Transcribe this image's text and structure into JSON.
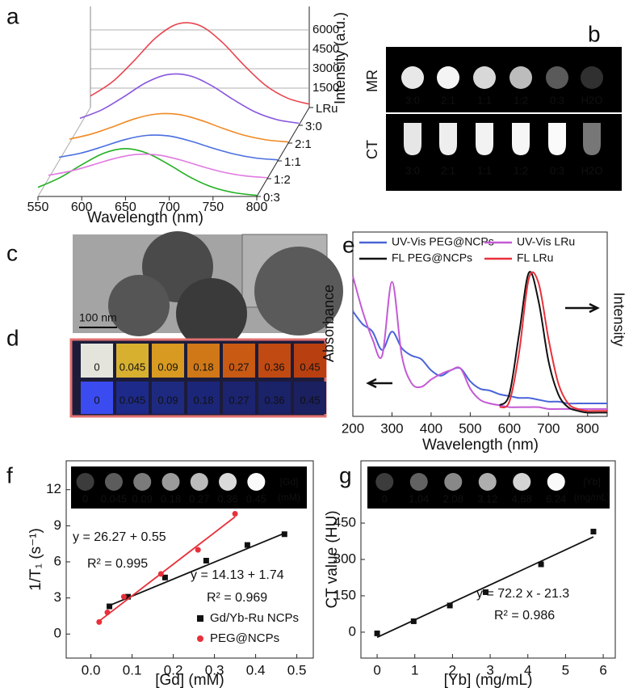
{
  "panel_labels": [
    "a",
    "b",
    "c",
    "d",
    "e",
    "f",
    "g"
  ],
  "panel_b": {
    "rows": [
      "MR",
      "CT"
    ],
    "samples": [
      "3:0",
      "2:1",
      "1:1",
      "1:2",
      "0:3",
      "H2O"
    ]
  },
  "panel_c": {
    "scale_bar": "100 nm"
  },
  "panel_d": {
    "concentrations": [
      "0",
      "0.045",
      "0.09",
      "0.18",
      "0.27",
      "0.36",
      "0.45"
    ]
  },
  "chart_data": [
    {
      "type": "waterfall",
      "x_label": "Wavelength (nm)",
      "y_label": "Intensity (a.u.)",
      "x": [
        550,
        575,
        600,
        625,
        650,
        675,
        700,
        725,
        750,
        775,
        800
      ],
      "xlim": [
        550,
        800
      ],
      "xticks": [
        550,
        600,
        650,
        700,
        750,
        800
      ],
      "ylim": [
        0,
        7500
      ],
      "yticks": [
        1500,
        3000,
        4500,
        6000
      ],
      "series": [
        {
          "name": "0:3",
          "color": "#22b022",
          "values": [
            700,
            1450,
            2450,
            3340,
            3700,
            3340,
            2450,
            1450,
            700,
            280,
            90
          ]
        },
        {
          "name": "1:2",
          "color": "#e07ae0",
          "values": [
            260,
            580,
            1050,
            1550,
            1870,
            1830,
            1460,
            950,
            500,
            210,
            75
          ]
        },
        {
          "name": "1:1",
          "color": "#4a6ee0",
          "values": [
            280,
            600,
            1100,
            1640,
            1970,
            1930,
            1540,
            1000,
            530,
            220,
            80
          ]
        },
        {
          "name": "2:1",
          "color": "#f08a24",
          "values": [
            310,
            700,
            1270,
            1890,
            2250,
            2210,
            1770,
            1150,
            600,
            250,
            90
          ]
        },
        {
          "name": "3:0",
          "color": "#8855dd",
          "values": [
            540,
            1200,
            2200,
            3280,
            3920,
            3840,
            3080,
            2000,
            1040,
            440,
            160
          ]
        },
        {
          "name": "LRu",
          "color": "#e8454f",
          "values": [
            890,
            1980,
            3630,
            5410,
            6470,
            6340,
            5080,
            3300,
            1720,
            730,
            260
          ]
        }
      ]
    },
    {
      "type": "line",
      "x_label": "Wavelength (nm)",
      "y_label": "Absorbance",
      "y2_label": "Intensity",
      "x": [
        200,
        225,
        250,
        275,
        300,
        325,
        350,
        375,
        400,
        425,
        450,
        475,
        500,
        525,
        550,
        575,
        600,
        625,
        650,
        675,
        700,
        725,
        750,
        775,
        800,
        825,
        850
      ],
      "xlim": [
        200,
        850
      ],
      "xticks": [
        200,
        300,
        400,
        500,
        600,
        700,
        800
      ],
      "ylim": [
        0,
        1
      ],
      "y2lim": [
        0,
        1
      ],
      "series": [
        {
          "name": "UV-Vis PEG@NCPs",
          "color": "#4a64d8",
          "values": [
            0.57,
            0.5,
            0.46,
            0.36,
            0.46,
            0.37,
            0.33,
            0.31,
            0.25,
            0.22,
            0.25,
            0.26,
            0.19,
            0.15,
            0.14,
            0.12,
            0.11,
            0.1,
            0.1,
            0.09,
            0.08,
            0.08,
            0.07,
            0.07,
            0.07,
            0.07,
            0.07
          ]
        },
        {
          "name": "UV-Vis LRu",
          "color": "#c45ad6",
          "values": [
            0.76,
            0.57,
            0.42,
            0.33,
            0.73,
            0.33,
            0.18,
            0.16,
            0.2,
            0.23,
            0.25,
            0.26,
            0.15,
            0.09,
            0.07,
            0.06,
            0.05,
            0.05,
            0.05,
            0.05,
            0.04,
            0.04,
            0.04,
            0.04,
            0.04,
            0.04,
            0.04
          ]
        },
        {
          "name": "FL PEG@NCPs",
          "color": "#111111",
          "axis": "y2",
          "values": [
            null,
            null,
            null,
            null,
            null,
            null,
            null,
            null,
            null,
            null,
            null,
            null,
            null,
            null,
            null,
            0.06,
            0.12,
            0.45,
            0.78,
            0.62,
            0.3,
            0.12,
            0.05,
            0.03,
            0.02,
            0.02,
            0.02
          ]
        },
        {
          "name": "FL LRu",
          "color": "#e8303a",
          "axis": "y2",
          "values": [
            null,
            null,
            null,
            null,
            null,
            null,
            null,
            null,
            null,
            null,
            null,
            null,
            null,
            null,
            null,
            0.05,
            0.08,
            0.35,
            0.75,
            0.72,
            0.42,
            0.18,
            0.07,
            0.04,
            0.03,
            0.03,
            0.03
          ]
        }
      ]
    },
    {
      "type": "scatter",
      "x_label": "[Gd] (mM)",
      "y_label": "1/T₁ (s⁻¹)",
      "xlim": [
        -0.06,
        0.54
      ],
      "xticks": [
        {
          "value": 0,
          "label": "0.0"
        },
        0.1,
        0.2,
        0.3,
        0.4,
        0.5
      ],
      "ylim": [
        -2,
        14.4
      ],
      "yticks": [
        0,
        3,
        6,
        9,
        12
      ],
      "inset": {
        "labels": [
          "0",
          "0.045",
          "0.09",
          "0.18",
          "0.27",
          "0.36",
          "0.45"
        ],
        "unit": "[Gd]",
        "unit2": "(mM)"
      },
      "series": [
        {
          "name": "Gd/Yb-Ru NCPs",
          "color": "#111111",
          "marker": "square",
          "x": [
            0.045,
            0.09,
            0.18,
            0.28,
            0.38,
            0.47
          ],
          "values": [
            2.3,
            3.1,
            4.7,
            6.1,
            7.4,
            8.3
          ],
          "fit": {
            "slope": 14.13,
            "intercept": 1.74,
            "equation": "y = 14.13 + 1.74",
            "r2": "R² = 0.969"
          }
        },
        {
          "name": "PEG@NCPs",
          "color": "#e8303a",
          "marker": "circle",
          "x": [
            0.02,
            0.04,
            0.08,
            0.17,
            0.26,
            0.35
          ],
          "values": [
            1.0,
            1.8,
            3.1,
            5.0,
            7.0,
            10.0
          ],
          "fit": {
            "slope": 26.27,
            "intercept": 0.55,
            "equation": "y = 26.27 + 0.55",
            "r2": "R² = 0.995"
          }
        }
      ]
    },
    {
      "type": "scatter",
      "x_label": "[Yb] (mg/mL)",
      "y_label": "CT value (HU)",
      "xlim": [
        -0.43,
        6.32
      ],
      "xticks": [
        0,
        1,
        2,
        3,
        4,
        5,
        6
      ],
      "ylim": [
        -107,
        707
      ],
      "yticks": [
        0,
        150,
        300,
        450
      ],
      "inset": {
        "labels": [
          "0",
          "1.04",
          "2.08",
          "3.12",
          "4.68",
          "6.24"
        ],
        "unit": "[Yb]",
        "unit2": "(mg/mL)"
      },
      "series": [
        {
          "color": "#111111",
          "marker": "square",
          "x": [
            0,
            0.97,
            1.93,
            2.88,
            4.35,
            5.74
          ],
          "values": [
            -5,
            45,
            110,
            165,
            280,
            415
          ],
          "fit": {
            "slope": 72.2,
            "intercept": -21.3,
            "equation": "y = 72.2 x - 21.3",
            "r2": "R² = 0.986"
          }
        }
      ]
    }
  ]
}
